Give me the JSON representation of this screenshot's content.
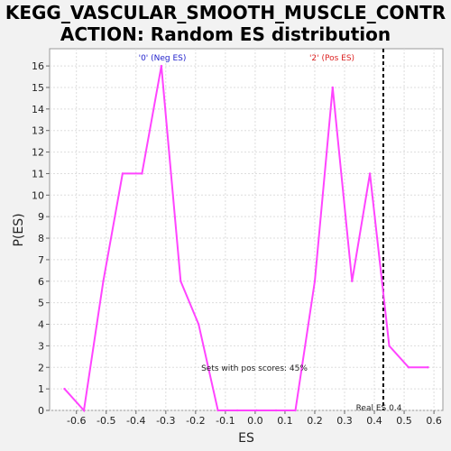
{
  "chart_data": {
    "type": "line",
    "title": "KEGG_VASCULAR_SMOOTH_MUSCLE_CONTRACTION: Random ES distribution",
    "title_line1": "KEGG_VASCULAR_SMOOTH_MUSCLE_CONTR",
    "title_line2": "ACTION: Random ES distribution",
    "xlabel": "ES",
    "ylabel": "P(ES)",
    "xlim": [
      -0.69,
      0.63
    ],
    "ylim": [
      0,
      16.8
    ],
    "xticks": [
      -0.6,
      -0.5,
      -0.4,
      -0.3,
      -0.2,
      -0.1,
      0.0,
      0.1,
      0.2,
      0.3,
      0.4,
      0.5,
      0.6
    ],
    "xtick_labels": [
      "-0.6",
      "-0.5",
      "-0.4",
      "-0.3",
      "-0.2",
      "-0.1",
      "0.0",
      "0.1",
      "0.2",
      "0.3",
      "0.4",
      "0.5",
      "0.6"
    ],
    "yticks": [
      0,
      1,
      2,
      3,
      4,
      5,
      6,
      7,
      8,
      9,
      10,
      11,
      12,
      13,
      14,
      15,
      16
    ],
    "grid": true,
    "series": [
      {
        "color": "#ff44ff",
        "x": [
          -0.64,
          -0.575,
          -0.51,
          -0.445,
          -0.38,
          -0.315,
          -0.25,
          -0.19,
          -0.125,
          -0.06,
          0.005,
          0.07,
          0.135,
          0.2,
          0.26,
          0.325,
          0.385,
          0.45,
          0.515,
          0.58
        ],
        "y": [
          1,
          0,
          6,
          11,
          11,
          16,
          6,
          4,
          0,
          0,
          0,
          0,
          0,
          6,
          15,
          6,
          11,
          3,
          2,
          2
        ]
      }
    ],
    "real_es": 0.43,
    "annotations": {
      "neg_label": "'0' (Neg ES)",
      "neg_color": "#2222cc",
      "pos_label": "'2' (Pos ES)",
      "pos_color": "#dd2222",
      "pos_scores": "Sets with pos scores: 45%",
      "real_es_label": "Real ES 0.4"
    }
  }
}
